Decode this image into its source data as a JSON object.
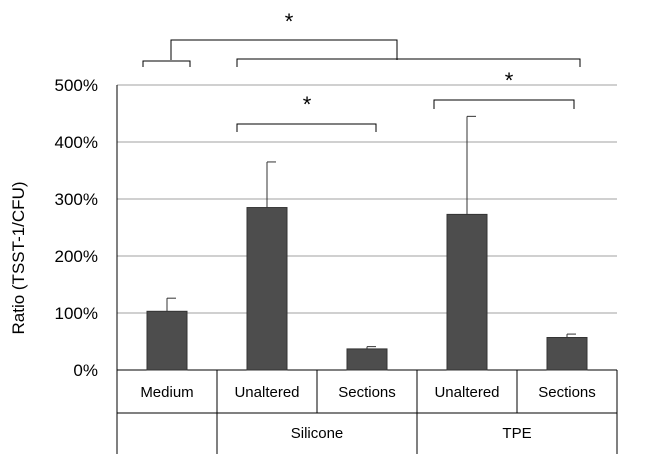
{
  "chart_data": {
    "type": "bar",
    "ylabel": "Ratio (TSST-1/CFU)",
    "ylim": [
      0,
      500
    ],
    "y_ticks": [
      "0%",
      "100%",
      "200%",
      "300%",
      "400%",
      "500%"
    ],
    "grid": true,
    "categories": [
      "Medium",
      "Unaltered",
      "Sections",
      "Unaltered",
      "Sections"
    ],
    "groups": [
      {
        "label": "",
        "categories": [
          "Medium"
        ]
      },
      {
        "label": "Silicone",
        "categories": [
          "Unaltered",
          "Sections"
        ]
      },
      {
        "label": "TPE",
        "categories": [
          "Unaltered",
          "Sections"
        ]
      }
    ],
    "values": [
      103,
      285,
      37,
      273,
      57
    ],
    "error_bars": [
      23,
      80,
      4,
      172,
      6
    ],
    "bar_color": "#4d4d4d",
    "significance": [
      {
        "from": "Medium",
        "to": "Silicone+TPE",
        "label": "*"
      },
      {
        "from": "Silicone Unaltered",
        "to": "Silicone Sections",
        "label": "*"
      },
      {
        "from": "TPE Unaltered",
        "to": "TPE Sections",
        "label": "*"
      }
    ]
  }
}
